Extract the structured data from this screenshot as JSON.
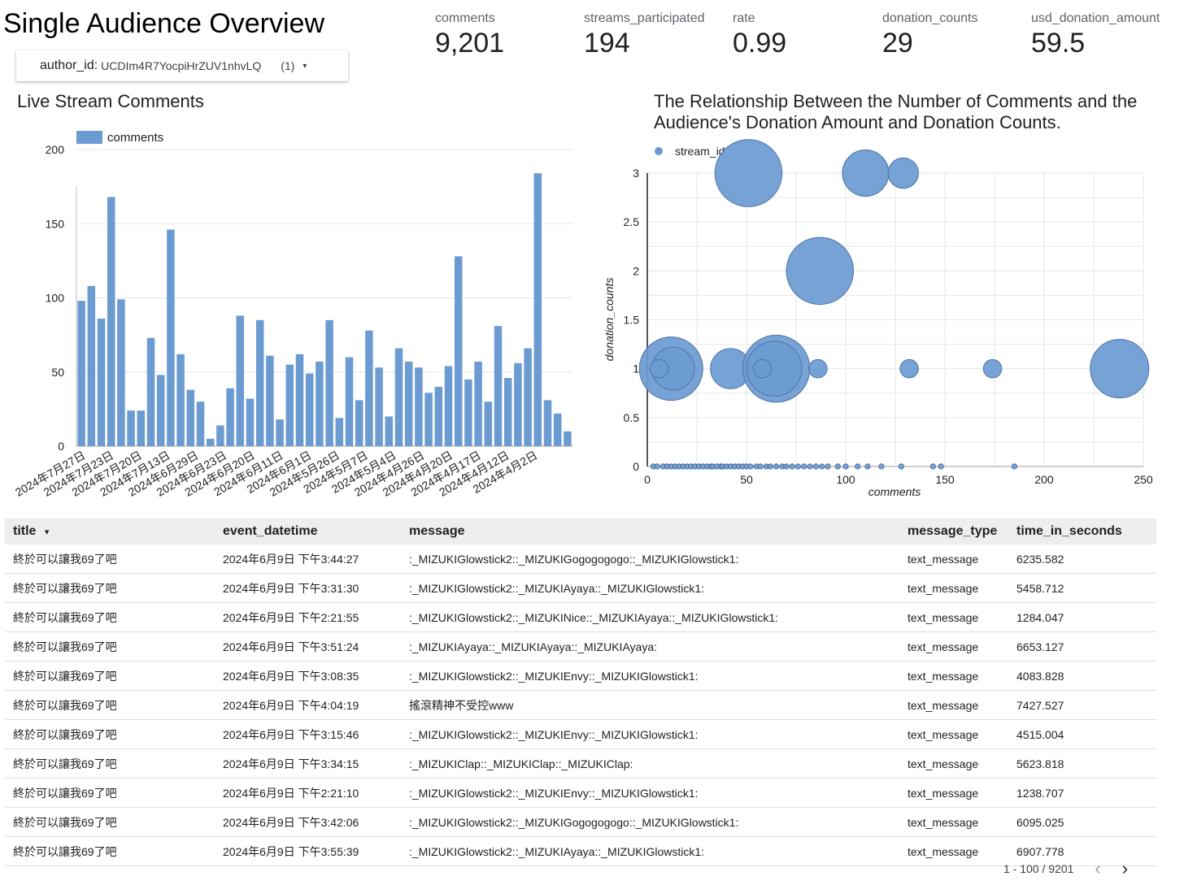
{
  "header": {
    "title": "Single Audience Overview"
  },
  "filter": {
    "label": "author_id:",
    "value": "UCDIm4R7YocpiHrZUV1nhvLQ",
    "count": "(1)",
    "caret": "▾"
  },
  "kpis": [
    {
      "label": "comments",
      "value": "9,201"
    },
    {
      "label": "streams_participated",
      "value": "194"
    },
    {
      "label": "rate",
      "value": "0.99"
    },
    {
      "label": "donation_counts",
      "value": "29"
    },
    {
      "label": "usd_donation_amount",
      "value": "59.5"
    }
  ],
  "chart_data": [
    {
      "type": "bar",
      "title": "Live Stream Comments",
      "legend": [
        "comments"
      ],
      "legend_position": "top-left",
      "ylim": [
        0,
        200
      ],
      "yticks": [
        0,
        50,
        100,
        150,
        200
      ],
      "tick_labels": [
        "2024年7月27日",
        "2024年7月23日",
        "2024年7月20日",
        "2024年7月13日",
        "2024年6月29日",
        "2024年6月23日",
        "2024年6月20日",
        "2024年6月11日",
        "2024年6月1日",
        "2024年5月26日",
        "2024年5月7日",
        "2024年5月4日",
        "2024年4月26日",
        "2024年4月20日",
        "2024年4月17日",
        "2024年4月12日",
        "2024年4月2日"
      ],
      "values": [
        98,
        108,
        86,
        168,
        99,
        24,
        24,
        73,
        48,
        146,
        62,
        38,
        30,
        5,
        14,
        39,
        88,
        32,
        85,
        61,
        18,
        55,
        62,
        49,
        57,
        85,
        19,
        60,
        31,
        78,
        53,
        20,
        66,
        57,
        53,
        36,
        40,
        54,
        128,
        45,
        57,
        30,
        81,
        46,
        56,
        66,
        184,
        31,
        22,
        10
      ],
      "color": "#6c9bd2"
    },
    {
      "type": "scatter",
      "title": "The Relationship Between the Number of Comments and the Audience's Donation Amount and Donation Counts.",
      "legend": [
        "stream_id"
      ],
      "legend_position": "top-left",
      "xlabel": "comments",
      "ylabel": "donation_counts",
      "xlim": [
        0,
        250
      ],
      "ylim": [
        0,
        3
      ],
      "xticks": [
        0,
        50,
        100,
        150,
        200,
        250
      ],
      "yticks": [
        "0",
        "0.5",
        "1",
        "1.5",
        "2",
        "2.5",
        "3"
      ],
      "bubbles": [
        {
          "x": 51,
          "y": 3,
          "size": 5.5
        },
        {
          "x": 110,
          "y": 3,
          "size": 3.8
        },
        {
          "x": 129,
          "y": 3,
          "size": 2.5
        },
        {
          "x": 87,
          "y": 2,
          "size": 5.5
        },
        {
          "x": 12,
          "y": 1,
          "size": 5.2
        },
        {
          "x": 13,
          "y": 1,
          "size": 3.5
        },
        {
          "x": 6,
          "y": 1,
          "size": 1.5
        },
        {
          "x": 42,
          "y": 1,
          "size": 3.3
        },
        {
          "x": 65,
          "y": 1,
          "size": 5.5
        },
        {
          "x": 64,
          "y": 1,
          "size": 4.5
        },
        {
          "x": 58,
          "y": 1,
          "size": 1.5
        },
        {
          "x": 86,
          "y": 1,
          "size": 1.5
        },
        {
          "x": 132,
          "y": 1,
          "size": 1.5
        },
        {
          "x": 174,
          "y": 1,
          "size": 1.5
        },
        {
          "x": 238,
          "y": 1,
          "size": 4.8
        }
      ],
      "zero_points_x": [
        3,
        5,
        8,
        10,
        12,
        14,
        16,
        18,
        20,
        22,
        24,
        26,
        28,
        30,
        32,
        33,
        35,
        37,
        38,
        40,
        42,
        44,
        46,
        48,
        50,
        52,
        55,
        57,
        60,
        62,
        65,
        68,
        70,
        73,
        76,
        79,
        82,
        85,
        88,
        91,
        96,
        100,
        106,
        111,
        118,
        128,
        144,
        148,
        185
      ]
    }
  ],
  "table": {
    "columns": [
      "title",
      "event_datetime",
      "message",
      "message_type",
      "time_in_seconds"
    ],
    "sort_icon": "▾",
    "rows": [
      [
        "終於可以讓我69了吧",
        "2024年6月9日 下午3:44:27",
        ":_MIZUKIGlowstick2::_MIZUKIGogogogogo::_MIZUKIGlowstick1:",
        "text_message",
        "6235.582"
      ],
      [
        "終於可以讓我69了吧",
        "2024年6月9日 下午3:31:30",
        ":_MIZUKIGlowstick2::_MIZUKIAyaya::_MIZUKIGlowstick1:",
        "text_message",
        "5458.712"
      ],
      [
        "終於可以讓我69了吧",
        "2024年6月9日 下午2:21:55",
        ":_MIZUKIGlowstick2::_MIZUKINice::_MIZUKIAyaya::_MIZUKIGlowstick1:",
        "text_message",
        "1284.047"
      ],
      [
        "終於可以讓我69了吧",
        "2024年6月9日 下午3:51:24",
        ":_MIZUKIAyaya::_MIZUKIAyaya::_MIZUKIAyaya:",
        "text_message",
        "6653.127"
      ],
      [
        "終於可以讓我69了吧",
        "2024年6月9日 下午3:08:35",
        ":_MIZUKIGlowstick2::_MIZUKIEnvy::_MIZUKIGlowstick1:",
        "text_message",
        "4083.828"
      ],
      [
        "終於可以讓我69了吧",
        "2024年6月9日 下午4:04:19",
        "搖滾精神不受控www",
        "text_message",
        "7427.527"
      ],
      [
        "終於可以讓我69了吧",
        "2024年6月9日 下午3:15:46",
        ":_MIZUKIGlowstick2::_MIZUKIEnvy::_MIZUKIGlowstick1:",
        "text_message",
        "4515.004"
      ],
      [
        "終於可以讓我69了吧",
        "2024年6月9日 下午3:34:15",
        ":_MIZUKIClap::_MIZUKIClap::_MIZUKIClap:",
        "text_message",
        "5623.818"
      ],
      [
        "終於可以讓我69了吧",
        "2024年6月9日 下午2:21:10",
        ":_MIZUKIGlowstick2::_MIZUKIEnvy::_MIZUKIGlowstick1:",
        "text_message",
        "1238.707"
      ],
      [
        "終於可以讓我69了吧",
        "2024年6月9日 下午3:42:06",
        ":_MIZUKIGlowstick2::_MIZUKIGogogogogo::_MIZUKIGlowstick1:",
        "text_message",
        "6095.025"
      ],
      [
        "終於可以讓我69了吧",
        "2024年6月9日 下午3:55:39",
        ":_MIZUKIGlowstick2::_MIZUKIAyaya::_MIZUKIGlowstick1:",
        "text_message",
        "6907.778"
      ]
    ]
  },
  "pager": {
    "range": "1 - 100 / 9201",
    "prev_icon": "chevron-left-icon",
    "next_icon": "chevron-right-icon",
    "prev_glyph": "‹",
    "next_glyph": "›"
  }
}
